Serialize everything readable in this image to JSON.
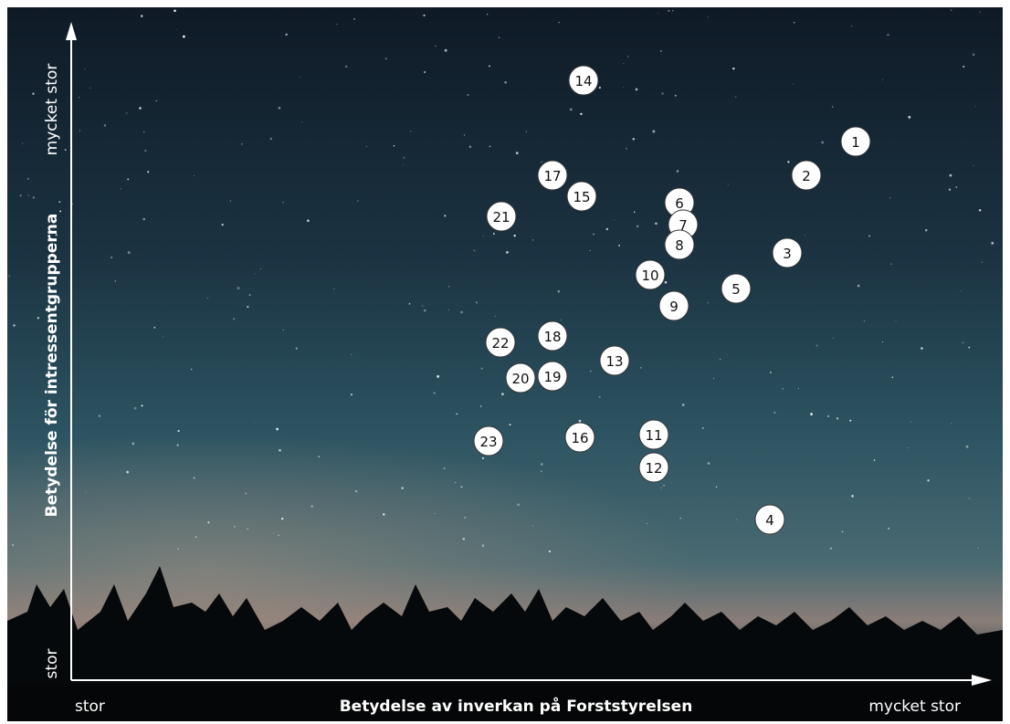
{
  "axes": {
    "y_top": "mycket stor",
    "y_title": "Betydelse för intressentgrupperna",
    "y_bottom": "stor",
    "x_left": "stor",
    "x_title": "Betydelse av inverkan på Forststyrelsen",
    "x_right": "mycket stor"
  },
  "points": [
    "1",
    "2",
    "3",
    "4",
    "5",
    "6",
    "7",
    "8",
    "9",
    "10",
    "11",
    "12",
    "13",
    "14",
    "15",
    "16",
    "17",
    "18",
    "19",
    "20",
    "21",
    "22",
    "23"
  ]
}
